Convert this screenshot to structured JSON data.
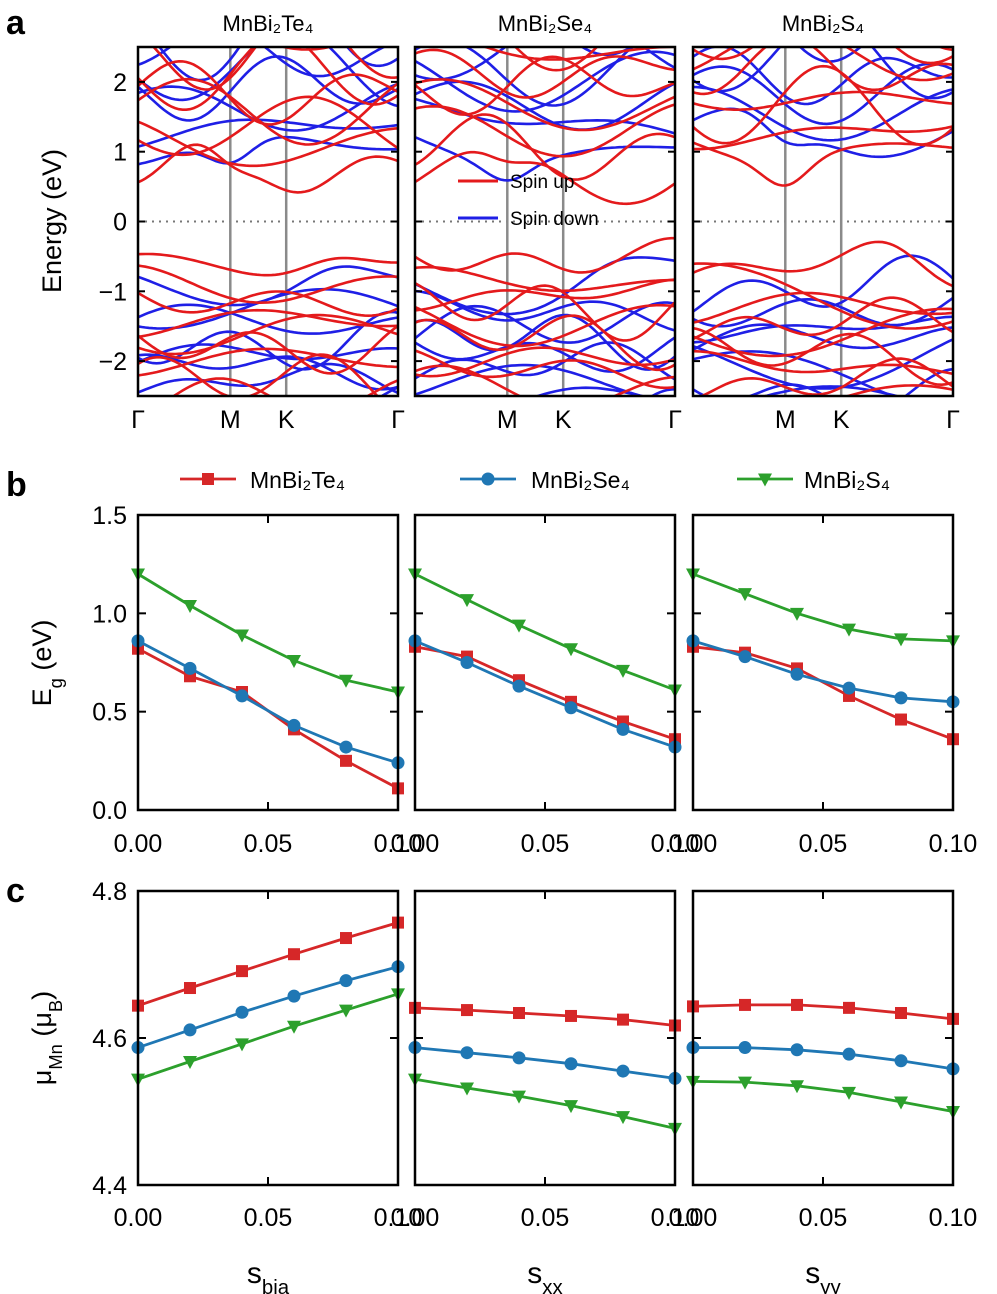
{
  "figure": {
    "panel_letters": [
      "a",
      "b",
      "c"
    ]
  },
  "chart_data": [
    {
      "type": "line",
      "id": "band_structure",
      "panel": "a",
      "ylabel": "Energy (eV)",
      "ylim": [
        -2.5,
        2.5
      ],
      "yticks": [
        "2",
        "1",
        "0",
        "−1",
        "−2"
      ],
      "kpoints": [
        "Γ",
        "M",
        "K",
        "Γ"
      ],
      "legend": [
        "Spin up",
        "Spin down"
      ],
      "colors": {
        "spin_up": "#e41a1c",
        "spin_down": "#1f1fe6"
      },
      "subplots": [
        {
          "title": "MnBi₂Te₄",
          "cbm_up": 0.45,
          "vbm_up": -0.42,
          "cbm_dn": 0.7,
          "vbm_dn": -0.75
        },
        {
          "title": "MnBi₂Se₄",
          "cbm_up": 0.45,
          "vbm_up": -0.35,
          "cbm_dn": 0.8,
          "vbm_dn": -0.75
        },
        {
          "title": "MnBi₂S₄",
          "cbm_up": 0.7,
          "vbm_up": -0.5,
          "cbm_dn": 0.95,
          "vbm_dn": -0.8
        }
      ]
    },
    {
      "type": "line",
      "id": "band_gap",
      "panel": "b",
      "ylabel_main": "E",
      "ylabel_sub": "g",
      "ylabel_unit": "(eV)",
      "ylim": [
        0,
        1.5
      ],
      "yticks": [
        "1.5",
        "1.0",
        "0.5",
        "0.0"
      ],
      "x": [
        0,
        0.02,
        0.04,
        0.06,
        0.08,
        0.1
      ],
      "xticks": [
        "0.00",
        "0.05",
        "0.10"
      ],
      "legend": [
        "MnBi₂Te₄",
        "MnBi₂Se₄",
        "MnBi₂S₄"
      ],
      "colors": [
        "#d62728",
        "#1f77b4",
        "#2ca02c"
      ],
      "subplots": [
        {
          "strain": "bia",
          "series": [
            {
              "name": "MnBi₂Te₄",
              "values": [
                0.82,
                0.68,
                0.6,
                0.41,
                0.25,
                0.11
              ]
            },
            {
              "name": "MnBi₂Se₄",
              "values": [
                0.86,
                0.72,
                0.58,
                0.43,
                0.32,
                0.24
              ]
            },
            {
              "name": "MnBi₂S₄",
              "values": [
                1.2,
                1.04,
                0.89,
                0.76,
                0.66,
                0.6
              ]
            }
          ]
        },
        {
          "strain": "xx",
          "series": [
            {
              "name": "MnBi₂Te₄",
              "values": [
                0.83,
                0.78,
                0.66,
                0.55,
                0.45,
                0.36
              ]
            },
            {
              "name": "MnBi₂Se₄",
              "values": [
                0.86,
                0.75,
                0.63,
                0.52,
                0.41,
                0.32
              ]
            },
            {
              "name": "MnBi₂S₄",
              "values": [
                1.2,
                1.07,
                0.94,
                0.82,
                0.71,
                0.61
              ]
            }
          ]
        },
        {
          "strain": "yy",
          "series": [
            {
              "name": "MnBi₂Te₄",
              "values": [
                0.83,
                0.8,
                0.72,
                0.58,
                0.46,
                0.36
              ]
            },
            {
              "name": "MnBi₂Se₄",
              "values": [
                0.86,
                0.78,
                0.69,
                0.62,
                0.57,
                0.55
              ]
            },
            {
              "name": "MnBi₂S₄",
              "values": [
                1.2,
                1.1,
                1.0,
                0.92,
                0.87,
                0.86
              ]
            }
          ]
        }
      ]
    },
    {
      "type": "line",
      "id": "magnetic_moment",
      "panel": "c",
      "ylabel_main": "μ",
      "ylabel_sub": "Mn",
      "ylabel_unit_main": "(μ",
      "ylabel_unit_sub": "B",
      "ylabel_unit_close": ")",
      "ylim": [
        4.4,
        4.8
      ],
      "yticks": [
        "4.8",
        "4.6",
        "4.4"
      ],
      "x": [
        0,
        0.02,
        0.04,
        0.06,
        0.08,
        0.1
      ],
      "xticks": [
        "0.00",
        "0.05",
        "0.10"
      ],
      "subplots": [
        {
          "strain": "bia",
          "xlabel_main": "s",
          "xlabel_sub": "bia",
          "series": [
            {
              "name": "MnBi₂Te₄",
              "values": [
                4.644,
                4.668,
                4.691,
                4.714,
                4.736,
                4.757
              ]
            },
            {
              "name": "MnBi₂Se₄",
              "values": [
                4.587,
                4.611,
                4.635,
                4.657,
                4.678,
                4.697
              ]
            },
            {
              "name": "MnBi₂S₄",
              "values": [
                4.544,
                4.568,
                4.592,
                4.616,
                4.638,
                4.66
              ]
            }
          ]
        },
        {
          "strain": "xx",
          "xlabel_main": "s",
          "xlabel_sub": "xx",
          "series": [
            {
              "name": "MnBi₂Te₄",
              "values": [
                4.641,
                4.638,
                4.634,
                4.63,
                4.625,
                4.617
              ]
            },
            {
              "name": "MnBi₂Se₄",
              "values": [
                4.587,
                4.58,
                4.573,
                4.565,
                4.555,
                4.545
              ]
            },
            {
              "name": "MnBi₂S₄",
              "values": [
                4.544,
                4.532,
                4.521,
                4.508,
                4.493,
                4.477
              ]
            }
          ]
        },
        {
          "strain": "yy",
          "xlabel_main": "s",
          "xlabel_sub": "yy",
          "series": [
            {
              "name": "MnBi₂Te₄",
              "values": [
                4.643,
                4.645,
                4.645,
                4.641,
                4.634,
                4.626
              ]
            },
            {
              "name": "MnBi₂Se₄",
              "values": [
                4.587,
                4.587,
                4.584,
                4.578,
                4.569,
                4.558
              ]
            },
            {
              "name": "MnBi₂S₄",
              "values": [
                4.541,
                4.54,
                4.535,
                4.526,
                4.513,
                4.5
              ]
            }
          ]
        }
      ]
    }
  ]
}
